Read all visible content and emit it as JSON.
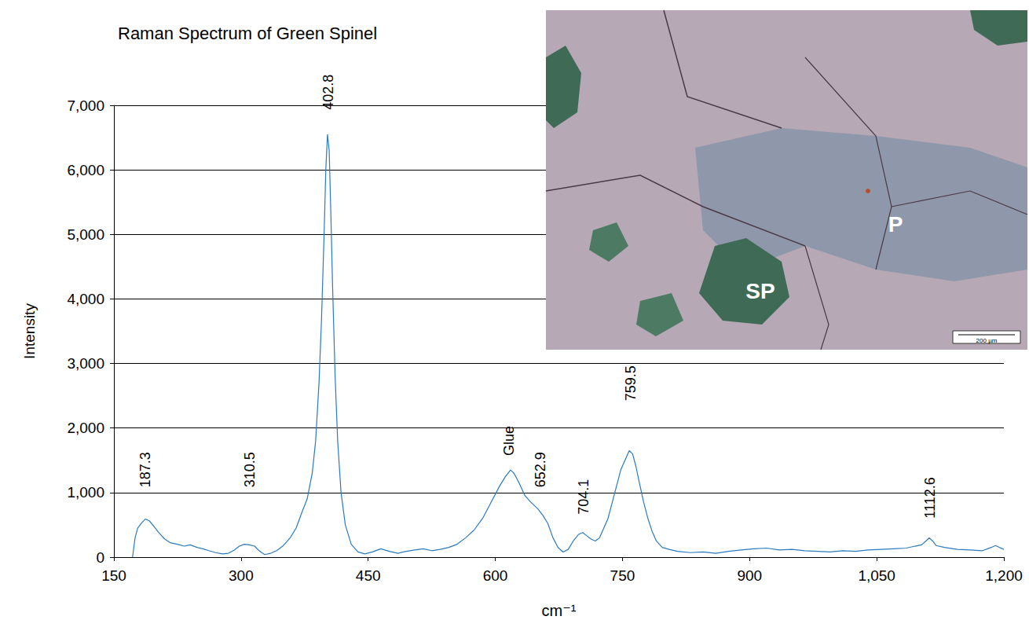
{
  "chart_data": {
    "type": "line",
    "title": "Raman Spectrum of Green Spinel",
    "x_label": "cm⁻¹",
    "y_label": "Intensity",
    "color": "#2a7bbf",
    "grid": true,
    "xlim": [
      150,
      1200
    ],
    "xticks": [
      150,
      300,
      450,
      600,
      750,
      900,
      1050,
      1200
    ],
    "ylim": [
      0,
      7000
    ],
    "yticks": [
      0,
      1000,
      2000,
      3000,
      4000,
      5000,
      6000,
      7000
    ],
    "x": [
      172,
      175,
      178,
      182,
      187,
      192,
      197,
      203,
      210,
      217,
      225,
      233,
      240,
      248,
      255,
      262,
      270,
      278,
      285,
      292,
      298,
      304,
      310,
      316,
      322,
      328,
      335,
      342,
      350,
      358,
      365,
      372,
      378,
      384,
      388,
      392,
      395,
      398,
      400,
      402,
      404,
      406,
      408,
      411,
      414,
      418,
      423,
      430,
      438,
      446,
      455,
      465,
      475,
      485,
      495,
      505,
      515,
      525,
      535,
      545,
      555,
      565,
      575,
      585,
      595,
      605,
      612,
      618,
      622,
      628,
      635,
      642,
      650,
      656,
      662,
      668,
      674,
      680,
      686,
      692,
      698,
      703,
      708,
      713,
      718,
      723,
      728,
      733,
      738,
      743,
      748,
      753,
      758,
      762,
      766,
      770,
      775,
      780,
      785,
      790,
      797,
      805,
      815,
      830,
      845,
      860,
      875,
      890,
      905,
      920,
      935,
      950,
      965,
      980,
      995,
      1010,
      1025,
      1040,
      1055,
      1070,
      1085,
      1095,
      1103,
      1108,
      1112,
      1116,
      1120,
      1130,
      1145,
      1160,
      1175,
      1185,
      1190,
      1195,
      1200
    ],
    "values": [
      0,
      300,
      450,
      520,
      590,
      560,
      480,
      380,
      280,
      220,
      200,
      170,
      190,
      150,
      130,
      100,
      70,
      50,
      60,
      110,
      170,
      200,
      190,
      170,
      90,
      40,
      60,
      100,
      180,
      300,
      450,
      700,
      900,
      1300,
      1800,
      2700,
      3700,
      5000,
      6000,
      6550,
      6300,
      5300,
      4200,
      2800,
      1800,
      1000,
      500,
      200,
      80,
      50,
      80,
      130,
      90,
      60,
      90,
      110,
      130,
      100,
      120,
      150,
      200,
      300,
      420,
      600,
      850,
      1100,
      1250,
      1350,
      1300,
      1150,
      950,
      850,
      750,
      650,
      520,
      300,
      150,
      80,
      120,
      250,
      350,
      380,
      330,
      280,
      250,
      300,
      450,
      600,
      850,
      1100,
      1350,
      1500,
      1650,
      1600,
      1400,
      1150,
      850,
      600,
      400,
      250,
      150,
      120,
      90,
      70,
      80,
      60,
      90,
      110,
      130,
      140,
      110,
      120,
      100,
      90,
      80,
      100,
      90,
      110,
      120,
      130,
      140,
      170,
      190,
      250,
      300,
      250,
      180,
      150,
      120,
      110,
      100,
      150,
      180,
      150,
      120
    ],
    "annotations": [
      {
        "x": 187.3,
        "y": 1080,
        "text": "187.3"
      },
      {
        "x": 310.5,
        "y": 1080,
        "text": "310.5"
      },
      {
        "x": 402.8,
        "y": 6930,
        "text": "402.8"
      },
      {
        "x": 616,
        "y": 1570,
        "text": "Glue"
      },
      {
        "x": 652.9,
        "y": 1080,
        "text": "652.9"
      },
      {
        "x": 704.1,
        "y": 660,
        "text": "704.1"
      },
      {
        "x": 759.5,
        "y": 2420,
        "text": "759.5"
      },
      {
        "x": 1112.6,
        "y": 600,
        "text": "1112.6"
      }
    ],
    "inset_labels": [
      "P",
      "SP"
    ],
    "scale_bar": "200 µm"
  }
}
